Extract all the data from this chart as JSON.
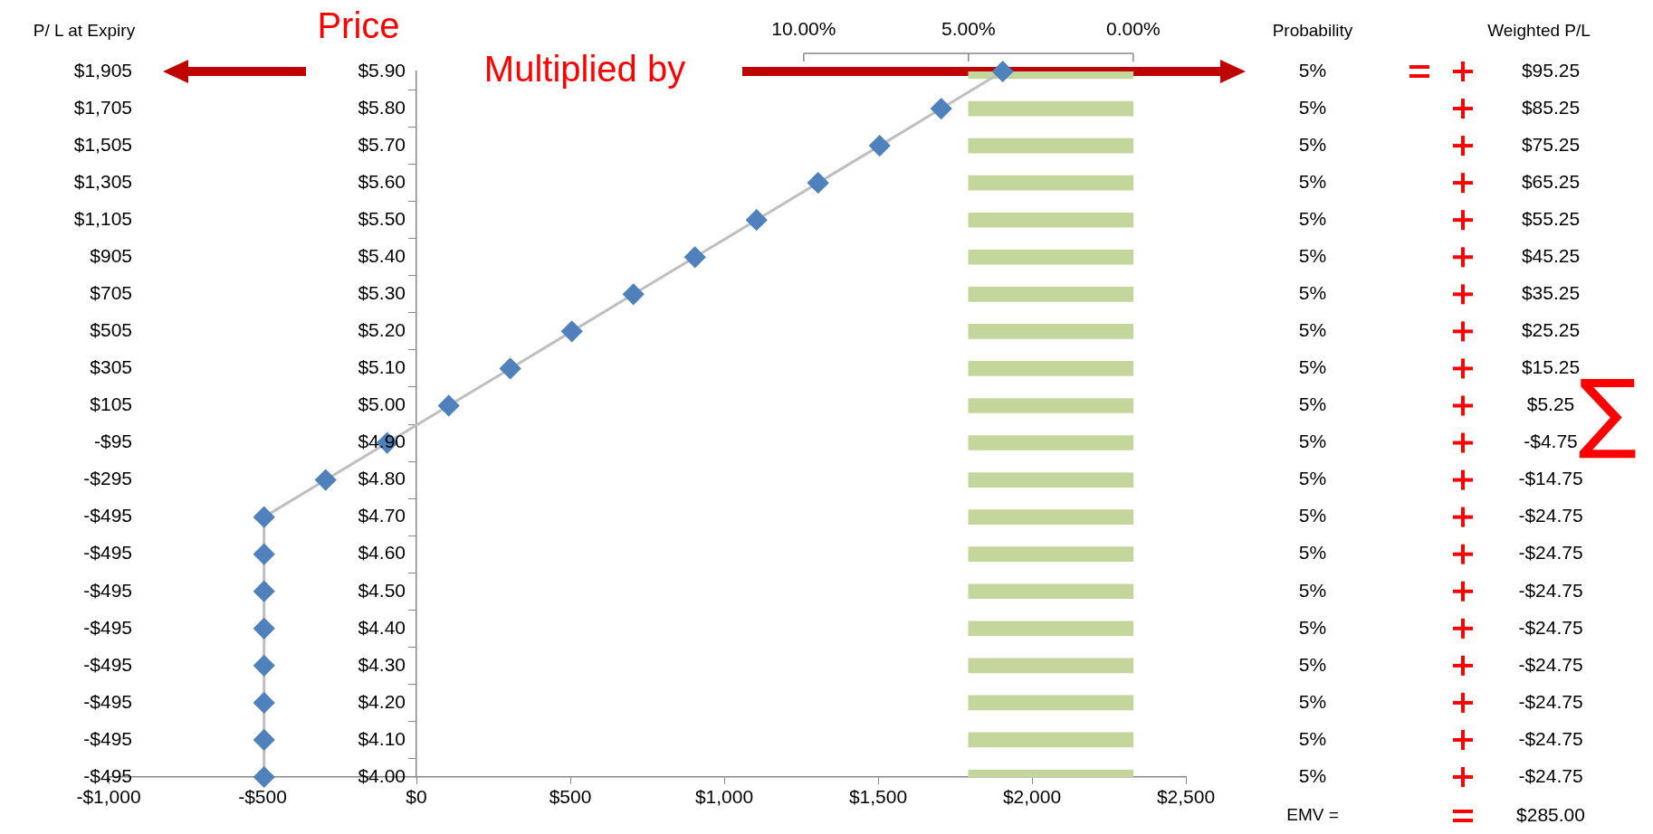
{
  "chart_data": {
    "type": "line",
    "orientation": "horizontal",
    "ylabel": "Price",
    "categories": [
      "$5.90",
      "$5.80",
      "$5.70",
      "$5.60",
      "$5.50",
      "$5.40",
      "$5.30",
      "$5.20",
      "$5.10",
      "$5.00",
      "$4.90",
      "$4.80",
      "$4.70",
      "$4.60",
      "$4.50",
      "$4.40",
      "$4.30",
      "$4.20",
      "$4.10",
      "$4.00"
    ],
    "series": [
      {
        "type": "bar",
        "axis": "x2",
        "color": "#c3d69b",
        "values": [
          5,
          5,
          5,
          5,
          5,
          5,
          5,
          5,
          5,
          5,
          5,
          5,
          5,
          5,
          5,
          5,
          5,
          5,
          5,
          5
        ],
        "value_labels": [
          "5%",
          "5%",
          "5%",
          "5%",
          "5%",
          "5%",
          "5%",
          "5%",
          "5%",
          "5%",
          "5%",
          "5%",
          "5%",
          "5%",
          "5%",
          "5%",
          "5%",
          "5%",
          "5%",
          "5%"
        ]
      },
      {
        "color": "#bfbfbf",
        "colors": [
          "#4f81bd",
          "#4f81bd",
          "#4f81bd",
          "#4f81bd",
          "#4f81bd",
          "#4f81bd",
          "#4f81bd",
          "#4f81bd",
          "#4f81bd",
          "#4f81bd",
          "#4f81bd",
          "#4f81bd",
          "#4f81bd",
          "#4f81bd",
          "#4f81bd",
          "#4f81bd",
          "#4f81bd",
          "#4f81bd",
          "#4f81bd",
          "#4f81bd"
        ],
        "values": [
          1905,
          1705,
          1505,
          1305,
          1105,
          905,
          705,
          505,
          305,
          105,
          -95,
          -295,
          -495,
          -495,
          -495,
          -495,
          -495,
          -495,
          -495,
          -495
        ]
      }
    ],
    "xlim": [
      -1000,
      2500
    ],
    "xticks": [
      {
        "value": -1000,
        "label": "-$1,000"
      },
      {
        "value": -500,
        "label": "-$500"
      },
      {
        "value": 0,
        "label": "$0"
      },
      {
        "value": 500,
        "label": "$500"
      },
      {
        "value": 1000,
        "label": "$1,000"
      },
      {
        "value": 1500,
        "label": "$1,500"
      },
      {
        "value": 2000,
        "label": "$2,000"
      },
      {
        "value": 2500,
        "label": "$2,500"
      }
    ],
    "x2lim": [
      31.1,
      -1.6
    ],
    "x2ticks": [
      {
        "value": 10,
        "label": "10.00%"
      },
      {
        "value": 5,
        "label": "5.00%"
      },
      {
        "value": 0,
        "label": "0.00%"
      }
    ],
    "marker": "diamond",
    "line_style": "solid",
    "annotations": [
      "P/ L at Expiry",
      "Multiplied by",
      "Probability",
      "Weighted P/L",
      "EMV =",
      "$285.00",
      "∑",
      "$95.25",
      "$85.25",
      "$75.25",
      "$65.25",
      "$55.25",
      "$45.25",
      "$35.25",
      "$25.25",
      "$15.25",
      "$5.25",
      "-$4.75",
      "-$14.75",
      "-$24.75",
      "-$24.75",
      "-$24.75",
      "-$24.75",
      "-$24.75",
      "-$24.75",
      "-$24.75",
      "-$24.75",
      "$1,905",
      "$1,705",
      "$1,505",
      "$1,305",
      "$1,105",
      "$905",
      "$705",
      "$505",
      "$305",
      "$105",
      "-$95",
      "-$295",
      "-$495",
      "-$495",
      "-$495",
      "-$495",
      "-$495",
      "-$495",
      "-$495",
      "-$495"
    ]
  }
}
